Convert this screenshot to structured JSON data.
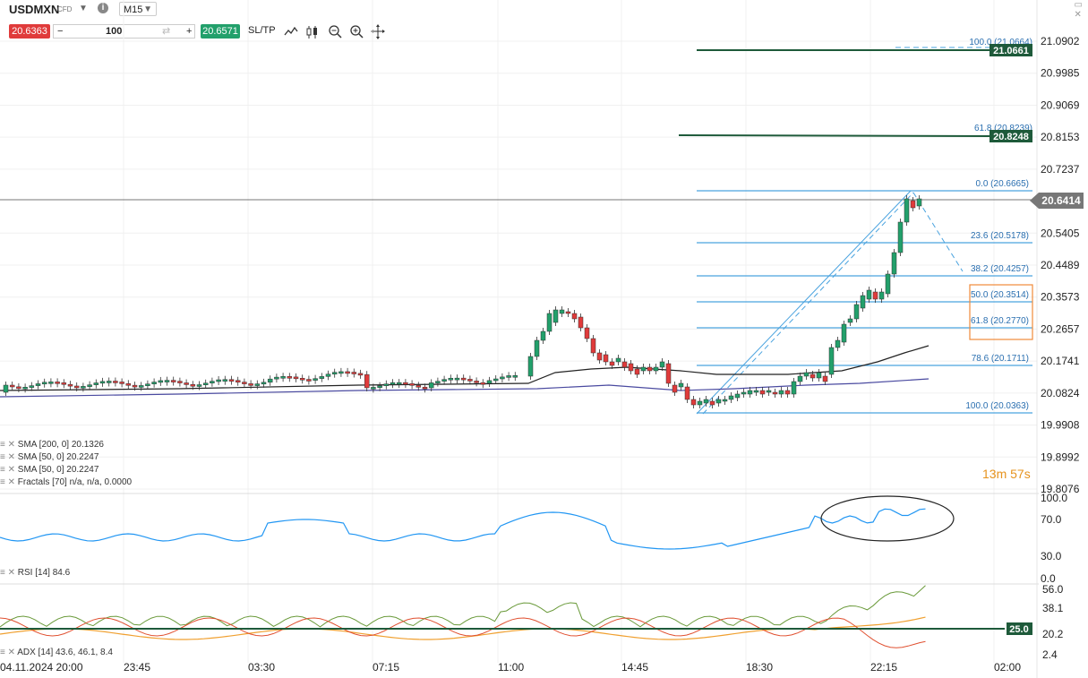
{
  "header": {
    "symbol": "USDMXN",
    "instrument_type": "CFD",
    "timeframe": "M15",
    "info_icon": "i",
    "window_icon": "maximize-icon"
  },
  "trade_bar": {
    "sell_price": "20.6363",
    "quantity": "100",
    "buy_price": "20.6571",
    "sltp_label": "SL/TP",
    "minus": "−",
    "plus": "+",
    "swap": "⇄"
  },
  "tools": [
    "line-chart-icon",
    "candles-icon",
    "zoom-out-icon",
    "zoom-in-icon",
    "crosshair-icon"
  ],
  "price_axis": {
    "ticks": [
      "21.0902",
      "20.9985",
      "20.9069",
      "20.8153",
      "20.7237",
      "20.5405",
      "20.4489",
      "20.3573",
      "20.2657",
      "20.1741",
      "20.0824",
      "19.9908",
      "19.8992",
      "19.8076"
    ],
    "current_price": "20.6414",
    "line_21": "21.0661",
    "line_20": "20.8248"
  },
  "fib_labels": [
    "100.0 (21.0664)",
    "61.8 (20.8239)",
    "0.0 (20.6665)",
    "23.6 (20.5178)",
    "38.2 (20.4257)",
    "50.0 (20.3514)",
    "61.8 (20.2770)",
    "78.6 (20.1711)",
    "100.0 (20.0363)"
  ],
  "legend": {
    "sma200": "SMA [200, 0] 20.1326",
    "sma50a": "SMA [50, 0] 20.2247",
    "sma50b": "SMA [50, 0] 20.2247",
    "fractals": "Fractals [70] n/a, n/a, 0.0000",
    "rsi": "RSI [14] 84.6",
    "adx": "ADX [14] 43.6, 46.1, 8.4"
  },
  "timer": "13m 57s",
  "rsi_axis": [
    "100.0",
    "70.0",
    "30.0",
    "0.0"
  ],
  "adx_axis": [
    "56.0",
    "38.1",
    "20.2",
    "2.4"
  ],
  "adx_level": "25.0",
  "time_axis": [
    "04.11.2024 20:00",
    "23:45",
    "03:30",
    "07:15",
    "11:00",
    "14:45",
    "18:30",
    "22:15",
    "02:00"
  ],
  "colors": {
    "bull": "#22a06b",
    "bear": "#e03b3b",
    "fib": "#4aa3df",
    "sma200": "#333333",
    "sma50": "#4a4aa0",
    "rsi": "#2196f3",
    "adx_green": "#6a9a3a",
    "adx_orange": "#f0a030",
    "adx_red": "#e05030"
  }
}
